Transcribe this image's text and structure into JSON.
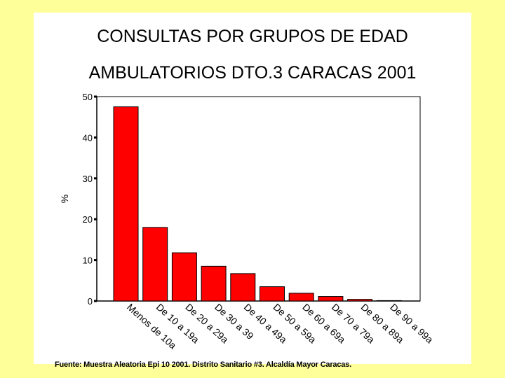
{
  "chart_data": {
    "type": "bar",
    "title": "CONSULTAS POR GRUPOS DE EDAD",
    "subtitle": "AMBULATORIOS DTO.3 CARACAS 2001",
    "xlabel": "",
    "ylabel": "%",
    "ylim": [
      0,
      50
    ],
    "yticks": [
      0,
      10,
      20,
      30,
      40,
      50
    ],
    "categories": [
      "Menos de 10a",
      "De 10 a 19a",
      "De 20 a 29a",
      "De 30 a 39",
      "De 40 a 49a",
      "De 50 a 59a",
      "De 60 a 69a",
      "De 70 a 79a",
      "De 80 a 89a",
      "De 90 a 99a"
    ],
    "values": [
      47.5,
      18.0,
      11.8,
      8.5,
      6.7,
      3.5,
      1.9,
      1.1,
      0.4,
      0.1
    ],
    "bar_color": "#ff0000",
    "grid": false,
    "legend": "none"
  },
  "footer": {
    "source": "Fuente: Muestra Aleatoria Epi 10 2001.  Distrito Sanitario #3. Alcaldía Mayor Caracas."
  }
}
